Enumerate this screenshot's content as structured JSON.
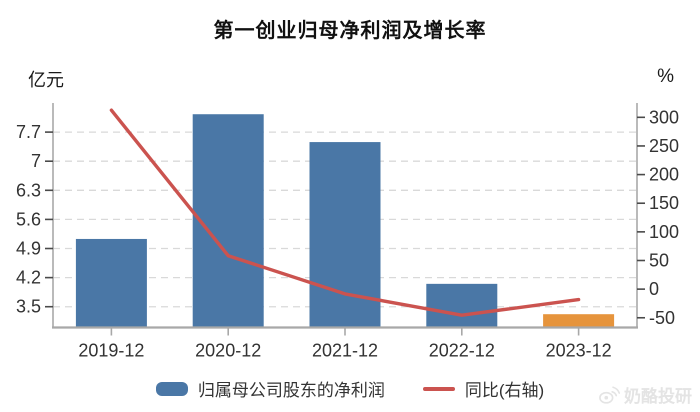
{
  "title": "第一创业归母净利润及增长率",
  "axis_units": {
    "left": "亿元",
    "right": "%"
  },
  "chart_data": {
    "type": "bar",
    "title": "第一创业归母净利润及增长率",
    "categories": [
      "2019-12",
      "2020-12",
      "2021-12",
      "2022-12",
      "2023-12"
    ],
    "series": [
      {
        "name": "归属母公司股东的净利润",
        "type": "bar",
        "axis": "left",
        "unit": "亿元",
        "values": [
          5.13,
          8.13,
          7.46,
          4.05,
          3.32
        ],
        "bar_colors": [
          "#4a77a6",
          "#4a77a6",
          "#4a77a6",
          "#4a77a6",
          "#e6943c"
        ]
      },
      {
        "name": "同比(右轴)",
        "type": "line",
        "axis": "right",
        "unit": "%",
        "values": [
          312.5,
          58.4,
          -8.3,
          -45.6,
          -18.3
        ],
        "color": "#cb534f"
      }
    ],
    "left_axis": {
      "label": "亿元",
      "min": 3.0,
      "max": 8.4,
      "tick_values": [
        3.5,
        4.2,
        4.9,
        5.6,
        6.3,
        7.0,
        7.7
      ],
      "tick_labels": [
        "3.5",
        "4.2",
        "4.9",
        "5.6",
        "6.3",
        "7",
        "7.7"
      ]
    },
    "right_axis": {
      "label": "%",
      "min": -67,
      "max": 325,
      "tick_values": [
        -50,
        0,
        50,
        100,
        150,
        200,
        250,
        300
      ],
      "tick_labels": [
        "-50",
        "0",
        "50",
        "100",
        "150",
        "200",
        "250",
        "300"
      ]
    },
    "grid": "horizontal dashed lines at left-axis ticks",
    "legend_position": "bottom"
  },
  "legend": [
    {
      "label": "归属母公司股东的净利润",
      "swatch": "bar",
      "color": "#4a77a6"
    },
    {
      "label": "同比(右轴)",
      "swatch": "line",
      "color": "#cb534f"
    }
  ],
  "watermark": {
    "text": "奶酪投研",
    "icon": "weibo-icon"
  },
  "colors": {
    "bar_blue": "#4a77a6",
    "bar_orange": "#e6943c",
    "line_red": "#cb534f",
    "gridline": "#d9d9d9",
    "axis_line": "#a8a8a8",
    "tick_mark": "#4a4a4a",
    "tick_text": "#333333"
  }
}
